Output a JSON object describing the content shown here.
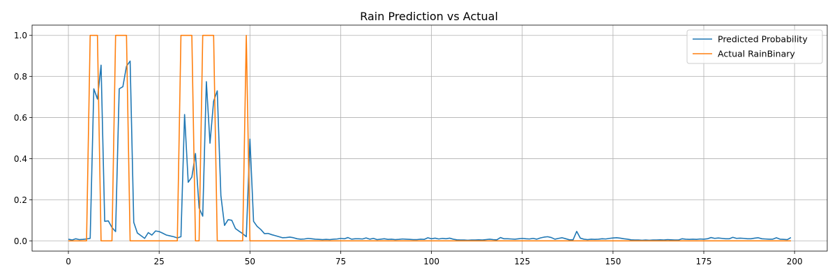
{
  "chart_data": {
    "type": "line",
    "title": "Rain Prediction vs Actual",
    "xlabel": "",
    "ylabel": "",
    "xlim": [
      -10,
      209
    ],
    "ylim": [
      -0.05,
      1.05
    ],
    "x_ticks": [
      0,
      25,
      50,
      75,
      100,
      125,
      150,
      175,
      200
    ],
    "y_ticks": [
      0.0,
      0.2,
      0.4,
      0.6,
      0.8,
      1.0
    ],
    "x_tick_labels": [
      "0",
      "25",
      "50",
      "75",
      "100",
      "125",
      "150",
      "175",
      "200"
    ],
    "y_tick_labels": [
      "0.0",
      "0.2",
      "0.4",
      "0.6",
      "0.8",
      "1.0"
    ],
    "grid": true,
    "legend_position": "top-right",
    "series": [
      {
        "name": "Predicted Probability",
        "color": "#1f77b4",
        "x": [
          0,
          1,
          2,
          3,
          4,
          5,
          6,
          7,
          8,
          9,
          10,
          11,
          12,
          13,
          14,
          15,
          16,
          17,
          18,
          19,
          20,
          21,
          22,
          23,
          24,
          25,
          26,
          27,
          28,
          29,
          30,
          31,
          32,
          33,
          34,
          35,
          36,
          37,
          38,
          39,
          40,
          41,
          42,
          43,
          44,
          45,
          46,
          47,
          48,
          49,
          50,
          51,
          52,
          53,
          54,
          55,
          56,
          57,
          58,
          59,
          60,
          61,
          62,
          63,
          64,
          65,
          66,
          67,
          68,
          69,
          70,
          71,
          72,
          73,
          74,
          75,
          76,
          77,
          78,
          79,
          80,
          81,
          82,
          83,
          84,
          85,
          86,
          87,
          88,
          89,
          90,
          91,
          92,
          93,
          94,
          95,
          96,
          97,
          98,
          99,
          100,
          101,
          102,
          103,
          104,
          105,
          106,
          107,
          108,
          109,
          110,
          111,
          112,
          113,
          114,
          115,
          116,
          117,
          118,
          119,
          120,
          121,
          122,
          123,
          124,
          125,
          126,
          127,
          128,
          129,
          130,
          131,
          132,
          133,
          134,
          135,
          136,
          137,
          138,
          139,
          140,
          141,
          142,
          143,
          144,
          145,
          146,
          147,
          148,
          149,
          150,
          151,
          152,
          153,
          154,
          155,
          156,
          157,
          158,
          159,
          160,
          161,
          162,
          163,
          164,
          165,
          166,
          167,
          168,
          169,
          170,
          171,
          172,
          173,
          174,
          175,
          176,
          177,
          178,
          179,
          180,
          181,
          182,
          183,
          184,
          185,
          186,
          187,
          188,
          189,
          190,
          191,
          192,
          193,
          194,
          195,
          196,
          197,
          198,
          199
        ],
        "values": [
          0.008,
          0.004,
          0.01,
          0.006,
          0.007,
          0.009,
          0.012,
          0.74,
          0.69,
          0.855,
          0.095,
          0.097,
          0.065,
          0.045,
          0.74,
          0.75,
          0.85,
          0.875,
          0.09,
          0.038,
          0.025,
          0.012,
          0.04,
          0.028,
          0.048,
          0.045,
          0.037,
          0.028,
          0.024,
          0.02,
          0.014,
          0.02,
          0.615,
          0.285,
          0.31,
          0.425,
          0.16,
          0.12,
          0.775,
          0.475,
          0.68,
          0.73,
          0.22,
          0.075,
          0.103,
          0.1,
          0.06,
          0.047,
          0.035,
          0.02,
          0.495,
          0.095,
          0.07,
          0.055,
          0.035,
          0.036,
          0.03,
          0.025,
          0.02,
          0.015,
          0.016,
          0.018,
          0.015,
          0.01,
          0.008,
          0.009,
          0.012,
          0.01,
          0.008,
          0.007,
          0.006,
          0.007,
          0.006,
          0.008,
          0.009,
          0.012,
          0.01,
          0.016,
          0.008,
          0.01,
          0.01,
          0.009,
          0.014,
          0.008,
          0.012,
          0.006,
          0.008,
          0.01,
          0.007,
          0.008,
          0.006,
          0.007,
          0.009,
          0.008,
          0.007,
          0.006,
          0.006,
          0.008,
          0.007,
          0.015,
          0.01,
          0.013,
          0.009,
          0.012,
          0.01,
          0.013,
          0.008,
          0.005,
          0.004,
          0.004,
          0.003,
          0.004,
          0.004,
          0.005,
          0.004,
          0.006,
          0.008,
          0.006,
          0.005,
          0.016,
          0.01,
          0.01,
          0.009,
          0.008,
          0.01,
          0.012,
          0.01,
          0.009,
          0.012,
          0.008,
          0.014,
          0.018,
          0.02,
          0.016,
          0.008,
          0.012,
          0.015,
          0.01,
          0.005,
          0.005,
          0.046,
          0.013,
          0.008,
          0.006,
          0.008,
          0.007,
          0.008,
          0.01,
          0.009,
          0.012,
          0.014,
          0.015,
          0.013,
          0.01,
          0.008,
          0.005,
          0.004,
          0.004,
          0.003,
          0.004,
          0.003,
          0.004,
          0.004,
          0.005,
          0.004,
          0.006,
          0.005,
          0.004,
          0.004,
          0.01,
          0.008,
          0.007,
          0.008,
          0.007,
          0.009,
          0.008,
          0.01,
          0.016,
          0.012,
          0.014,
          0.012,
          0.01,
          0.01,
          0.017,
          0.012,
          0.013,
          0.012,
          0.01,
          0.01,
          0.013,
          0.015,
          0.01,
          0.009,
          0.008,
          0.008,
          0.015,
          0.008,
          0.007,
          0.006,
          0.016
        ]
      },
      {
        "name": "Actual RainBinary",
        "color": "#ff7f0e",
        "x": [
          0,
          1,
          2,
          3,
          4,
          5,
          6,
          7,
          8,
          9,
          10,
          11,
          12,
          13,
          14,
          15,
          16,
          17,
          18,
          19,
          20,
          21,
          22,
          23,
          24,
          25,
          26,
          27,
          28,
          29,
          30,
          31,
          32,
          33,
          34,
          35,
          36,
          37,
          38,
          39,
          40,
          41,
          42,
          43,
          44,
          45,
          46,
          47,
          48,
          49,
          50,
          51,
          52,
          53,
          54,
          55,
          56,
          57,
          58,
          59,
          60,
          61,
          62,
          63,
          64,
          65,
          66,
          67,
          68,
          69,
          70,
          71,
          72,
          73,
          74,
          75,
          76,
          77,
          78,
          79,
          80,
          81,
          82,
          83,
          84,
          85,
          86,
          87,
          88,
          89,
          90,
          91,
          92,
          93,
          94,
          95,
          96,
          97,
          98,
          99,
          100,
          101,
          102,
          103,
          104,
          105,
          106,
          107,
          108,
          109,
          110,
          111,
          112,
          113,
          114,
          115,
          116,
          117,
          118,
          119,
          120,
          121,
          122,
          123,
          124,
          125,
          126,
          127,
          128,
          129,
          130,
          131,
          132,
          133,
          134,
          135,
          136,
          137,
          138,
          139,
          140,
          141,
          142,
          143,
          144,
          145,
          146,
          147,
          148,
          149,
          150,
          151,
          152,
          153,
          154,
          155,
          156,
          157,
          158,
          159,
          160,
          161,
          162,
          163,
          164,
          165,
          166,
          167,
          168,
          169,
          170,
          171,
          172,
          173,
          174,
          175,
          176,
          177,
          178,
          179,
          180,
          181,
          182,
          183,
          184,
          185,
          186,
          187,
          188,
          189,
          190,
          191,
          192,
          193,
          194,
          195,
          196,
          197,
          198,
          199
        ],
        "values": [
          0,
          0,
          0,
          0,
          0,
          0,
          1,
          1,
          1,
          0,
          0,
          0,
          0,
          1,
          1,
          1,
          1,
          0,
          0,
          0,
          0,
          0,
          0,
          0,
          0,
          0,
          0,
          0,
          0,
          0,
          0,
          1,
          1,
          1,
          1,
          0,
          0,
          1,
          1,
          1,
          1,
          0,
          0,
          0,
          0,
          0,
          0,
          0,
          0,
          1,
          0,
          0,
          0,
          0,
          0,
          0,
          0,
          0,
          0,
          0,
          0,
          0,
          0,
          0,
          0,
          0,
          0,
          0,
          0,
          0,
          0,
          0,
          0,
          0,
          0,
          0,
          0,
          0,
          0,
          0,
          0,
          0,
          0,
          0,
          0,
          0,
          0,
          0,
          0,
          0,
          0,
          0,
          0,
          0,
          0,
          0,
          0,
          0,
          0,
          0,
          0,
          0,
          0,
          0,
          0,
          0,
          0,
          0,
          0,
          0,
          0,
          0,
          0,
          0,
          0,
          0,
          0,
          0,
          0,
          0,
          0,
          0,
          0,
          0,
          0,
          0,
          0,
          0,
          0,
          0,
          0,
          0,
          0,
          0,
          0,
          0,
          0,
          0,
          0,
          0,
          0,
          0,
          0,
          0,
          0,
          0,
          0,
          0,
          0,
          0,
          0,
          0,
          0,
          0,
          0,
          0,
          0,
          0,
          0,
          0,
          0,
          0,
          0,
          0,
          0,
          0,
          0,
          0,
          0,
          0,
          0,
          0,
          0,
          0,
          0,
          0,
          0,
          0,
          0,
          0,
          0,
          0,
          0,
          0,
          0,
          0,
          0,
          0,
          0,
          0,
          0,
          0,
          0,
          0,
          0,
          0,
          0,
          0,
          0,
          0
        ]
      }
    ]
  }
}
